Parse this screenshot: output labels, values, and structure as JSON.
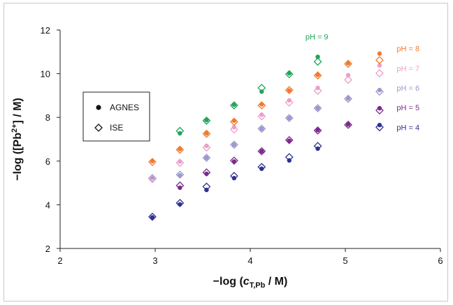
{
  "chart_data": {
    "type": "scatter",
    "xlabel": "−log (cT,Pb / M)",
    "ylabel": "−log ([Pb2+] / M)",
    "xlim": [
      2,
      6
    ],
    "ylim": [
      2,
      12
    ],
    "xticks": [
      "2",
      "3",
      "4",
      "5",
      "6"
    ],
    "yticks": [
      "2",
      "4",
      "6",
      "8",
      "10",
      "12"
    ],
    "grid": false,
    "legend": {
      "placement": "middle-left",
      "entries": [
        {
          "label": "AGNES",
          "marker": "filled-circle"
        },
        {
          "label": "ISE",
          "marker": "open-diamond"
        }
      ]
    },
    "series": [
      {
        "name": "pH = 4",
        "color": "#2e3190",
        "x": [
          2.97,
          3.26,
          3.54,
          3.83,
          4.12,
          4.41,
          4.71,
          5.36
        ],
        "agnes": [
          3.42,
          4.02,
          4.68,
          5.22,
          5.65,
          6.03,
          6.57,
          7.65
        ],
        "ise": [
          3.45,
          4.08,
          4.83,
          5.32,
          5.73,
          6.18,
          6.69,
          7.55
        ]
      },
      {
        "name": "pH = 5",
        "color": "#7b2a8c",
        "x": [
          2.97,
          3.26,
          3.54,
          3.83,
          4.12,
          4.41,
          4.71,
          5.03,
          5.36
        ],
        "agnes": [
          null,
          4.78,
          5.42,
          5.98,
          6.45,
          6.93,
          7.42,
          7.68,
          8.42
        ],
        "ise": [
          null,
          4.88,
          5.48,
          6.02,
          6.45,
          6.96,
          7.4,
          7.66,
          8.32
        ]
      },
      {
        "name": "pH = 6",
        "color": "#9c98cc",
        "x": [
          2.97,
          3.26,
          3.54,
          3.83,
          4.12,
          4.41,
          4.71,
          5.03,
          5.36
        ],
        "agnes": [
          5.25,
          5.35,
          6.15,
          6.75,
          7.48,
          7.97,
          8.42,
          8.87,
          9.25
        ],
        "ise": [
          5.22,
          5.38,
          6.15,
          6.75,
          7.48,
          7.97,
          8.42,
          8.85,
          9.18
        ]
      },
      {
        "name": "pH = 7",
        "color": "#ec9ec9",
        "x": [
          2.97,
          3.26,
          3.54,
          3.83,
          4.12,
          4.41,
          4.71,
          5.03,
          5.36
        ],
        "agnes": [
          null,
          5.98,
          6.7,
          7.55,
          8.12,
          8.78,
          9.35,
          9.93,
          10.38
        ],
        "ise": [
          5.18,
          5.92,
          6.62,
          7.45,
          8.05,
          8.68,
          9.22,
          9.72,
          10.02
        ]
      },
      {
        "name": "pH = 8",
        "color": "#f07a30",
        "x": [
          2.97,
          3.26,
          3.54,
          3.83,
          4.12,
          4.41,
          4.71,
          5.03,
          5.36
        ],
        "agnes": [
          6.0,
          6.55,
          7.27,
          7.85,
          8.6,
          9.23,
          9.95,
          10.48,
          10.92
        ],
        "ise": [
          5.96,
          6.52,
          7.25,
          7.8,
          8.55,
          9.25,
          9.92,
          10.45,
          10.62
        ]
      },
      {
        "name": "pH = 9",
        "color": "#22a45a",
        "x": [
          3.26,
          3.54,
          3.83,
          4.12,
          4.41,
          4.71
        ],
        "agnes": [
          7.27,
          7.88,
          8.58,
          9.18,
          10.02,
          10.77
        ],
        "ise": [
          7.38,
          7.85,
          8.55,
          9.35,
          9.98,
          10.55
        ]
      }
    ]
  }
}
